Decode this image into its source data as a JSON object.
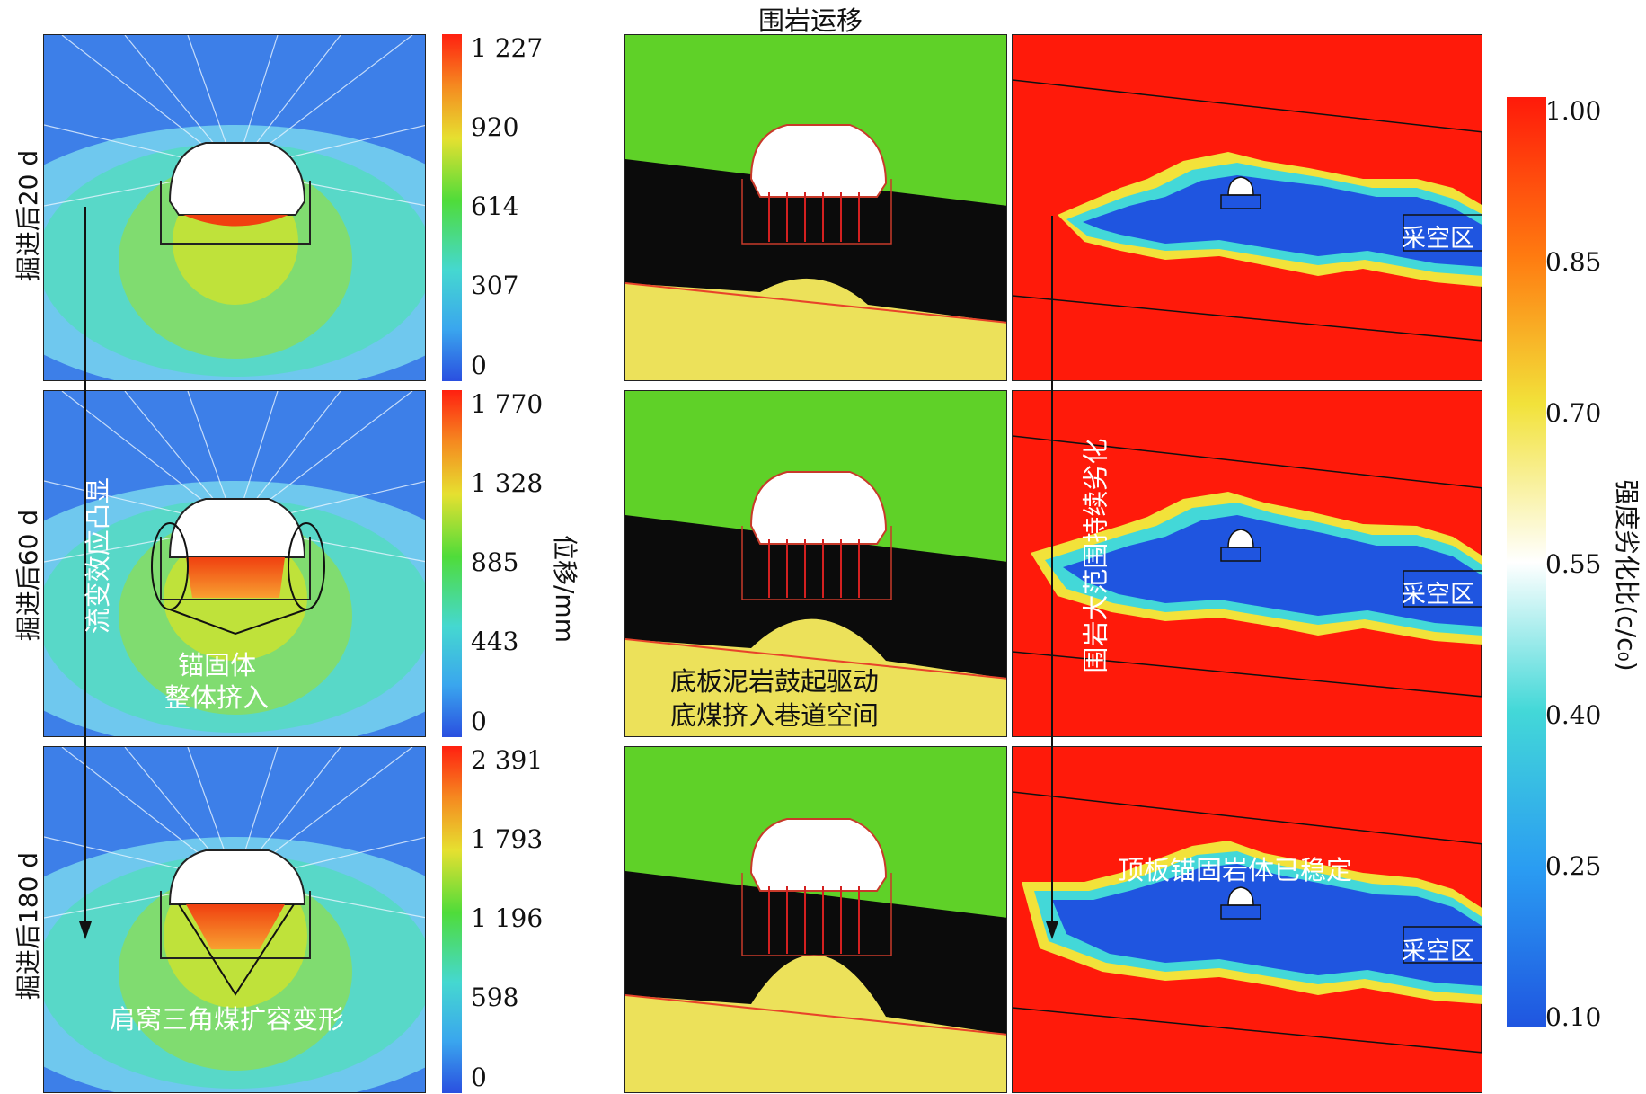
{
  "figure": {
    "top_title": "围岩运移",
    "row_labels": [
      "掘进后20 d",
      "掘进后60 d",
      "掘进后180 d"
    ],
    "displacement_axis_title": "位移/mm",
    "strength_axis_title": "强度劣化比(c/c₀)"
  },
  "displacement_colorbars": [
    {
      "ticks": [
        "1 227",
        "920",
        "614",
        "307",
        "0"
      ]
    },
    {
      "ticks": [
        "1 770",
        "1 328",
        "885",
        "443",
        "0"
      ]
    },
    {
      "ticks": [
        "2 391",
        "1 793",
        "1 196",
        "598",
        "0"
      ]
    }
  ],
  "strength_colorbar": {
    "ticks": [
      "1.00",
      "0.85",
      "0.70",
      "0.55",
      "0.40",
      "0.25",
      "0.10"
    ],
    "colors": [
      "#ff1a0a",
      "#ff7a10",
      "#f2e23a",
      "#ffffff",
      "#43d8d8",
      "#2a9cf2",
      "#1f55e0"
    ]
  },
  "annotations": {
    "rheology": "流变效应凸显",
    "anchor_squeeze_line1": "锚固体",
    "anchor_squeeze_line2": "整体挤入",
    "shoulder_coal": "肩窝三角煤扩容变形",
    "floor_heave_line1": "底板泥岩鼓起驱动",
    "floor_heave_line2": "底煤挤入巷道空间",
    "continuous_deterioration": "围岩大范围持续劣化",
    "roof_stable": "顶板锚固岩体已稳定",
    "goaf": "采空区"
  }
}
